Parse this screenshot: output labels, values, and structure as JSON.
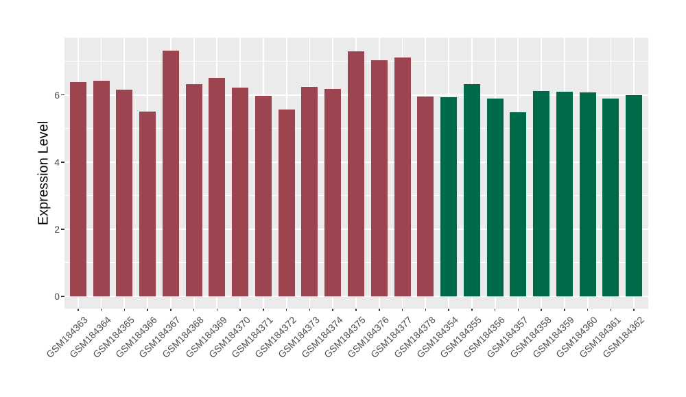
{
  "chart_data": {
    "type": "bar",
    "title": "",
    "xlabel": "",
    "ylabel": "Expression Level",
    "y_ticks": [
      0,
      2,
      4,
      6
    ],
    "y_minor_gridlines": [
      1,
      3,
      5,
      7
    ],
    "ylim": [
      0,
      7.7
    ],
    "grid": true,
    "legend": "none",
    "panel_bg": "#EBEBEB",
    "grid_color": "#FFFFFF",
    "axis_text_color": "#4D4D4D",
    "tick_color": "#333333",
    "group_colors": {
      "maroon": "#9C4450",
      "green": "#00694A"
    },
    "bars": [
      {
        "label": "GSM184363",
        "value": 6.38,
        "group": "maroon"
      },
      {
        "label": "GSM184364",
        "value": 6.42,
        "group": "maroon"
      },
      {
        "label": "GSM184365",
        "value": 6.15,
        "group": "maroon"
      },
      {
        "label": "GSM184366",
        "value": 5.5,
        "group": "maroon"
      },
      {
        "label": "GSM184367",
        "value": 7.31,
        "group": "maroon"
      },
      {
        "label": "GSM184368",
        "value": 6.31,
        "group": "maroon"
      },
      {
        "label": "GSM184369",
        "value": 6.51,
        "group": "maroon"
      },
      {
        "label": "GSM184370",
        "value": 6.22,
        "group": "maroon"
      },
      {
        "label": "GSM184371",
        "value": 5.98,
        "group": "maroon"
      },
      {
        "label": "GSM184372",
        "value": 5.56,
        "group": "maroon"
      },
      {
        "label": "GSM184373",
        "value": 6.24,
        "group": "maroon"
      },
      {
        "label": "GSM184374",
        "value": 6.18,
        "group": "maroon"
      },
      {
        "label": "GSM184375",
        "value": 7.3,
        "group": "maroon"
      },
      {
        "label": "GSM184376",
        "value": 7.03,
        "group": "maroon"
      },
      {
        "label": "GSM184377",
        "value": 7.11,
        "group": "maroon"
      },
      {
        "label": "GSM184378",
        "value": 5.96,
        "group": "maroon"
      },
      {
        "label": "GSM184354",
        "value": 5.93,
        "group": "green"
      },
      {
        "label": "GSM184355",
        "value": 6.33,
        "group": "green"
      },
      {
        "label": "GSM184356",
        "value": 5.9,
        "group": "green"
      },
      {
        "label": "GSM184357",
        "value": 5.48,
        "group": "green"
      },
      {
        "label": "GSM184358",
        "value": 6.12,
        "group": "green"
      },
      {
        "label": "GSM184359",
        "value": 6.1,
        "group": "green"
      },
      {
        "label": "GSM184360",
        "value": 6.07,
        "group": "green"
      },
      {
        "label": "GSM184361",
        "value": 5.89,
        "group": "green"
      },
      {
        "label": "GSM184362",
        "value": 6.0,
        "group": "green"
      }
    ]
  }
}
